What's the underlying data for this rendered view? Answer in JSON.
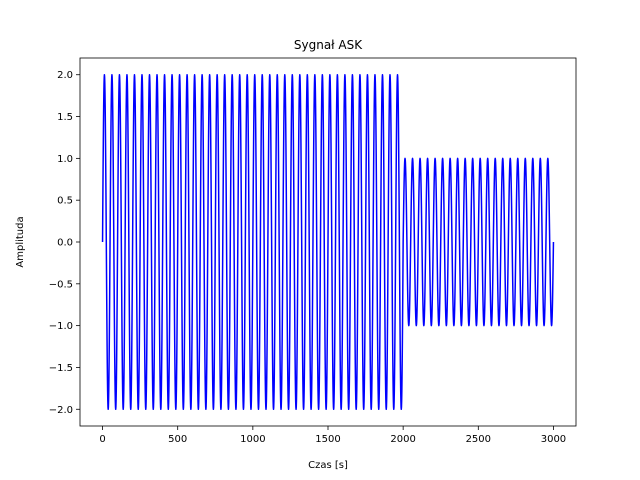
{
  "chart_data": {
    "type": "line",
    "title": "Sygnał ASK",
    "xlabel": "Czas [s]",
    "ylabel": "Amplituda",
    "xlim": [
      -150,
      3150
    ],
    "ylim": [
      -2.2,
      2.2
    ],
    "xticks": [
      0,
      500,
      1000,
      1500,
      2000,
      2500,
      3000
    ],
    "yticks": [
      -2.0,
      -1.5,
      -1.0,
      -0.5,
      0.0,
      0.5,
      1.0,
      1.5,
      2.0
    ],
    "xtick_labels": [
      "0",
      "500",
      "1000",
      "1500",
      "2000",
      "2500",
      "3000"
    ],
    "ytick_labels": [
      "−2.0",
      "−1.5",
      "−1.0",
      "−0.5",
      "0.0",
      "0.5",
      "1.0",
      "1.5",
      "2.0"
    ],
    "grid": false,
    "series": [
      {
        "color": "#0000ff",
        "x_range": [
          0,
          3000
        ],
        "period": 50,
        "segments": [
          {
            "x_start": 0,
            "x_end": 2000,
            "amplitude": 2.0
          },
          {
            "x_start": 2000,
            "x_end": 3000,
            "amplitude": 1.0
          }
        ]
      }
    ]
  }
}
